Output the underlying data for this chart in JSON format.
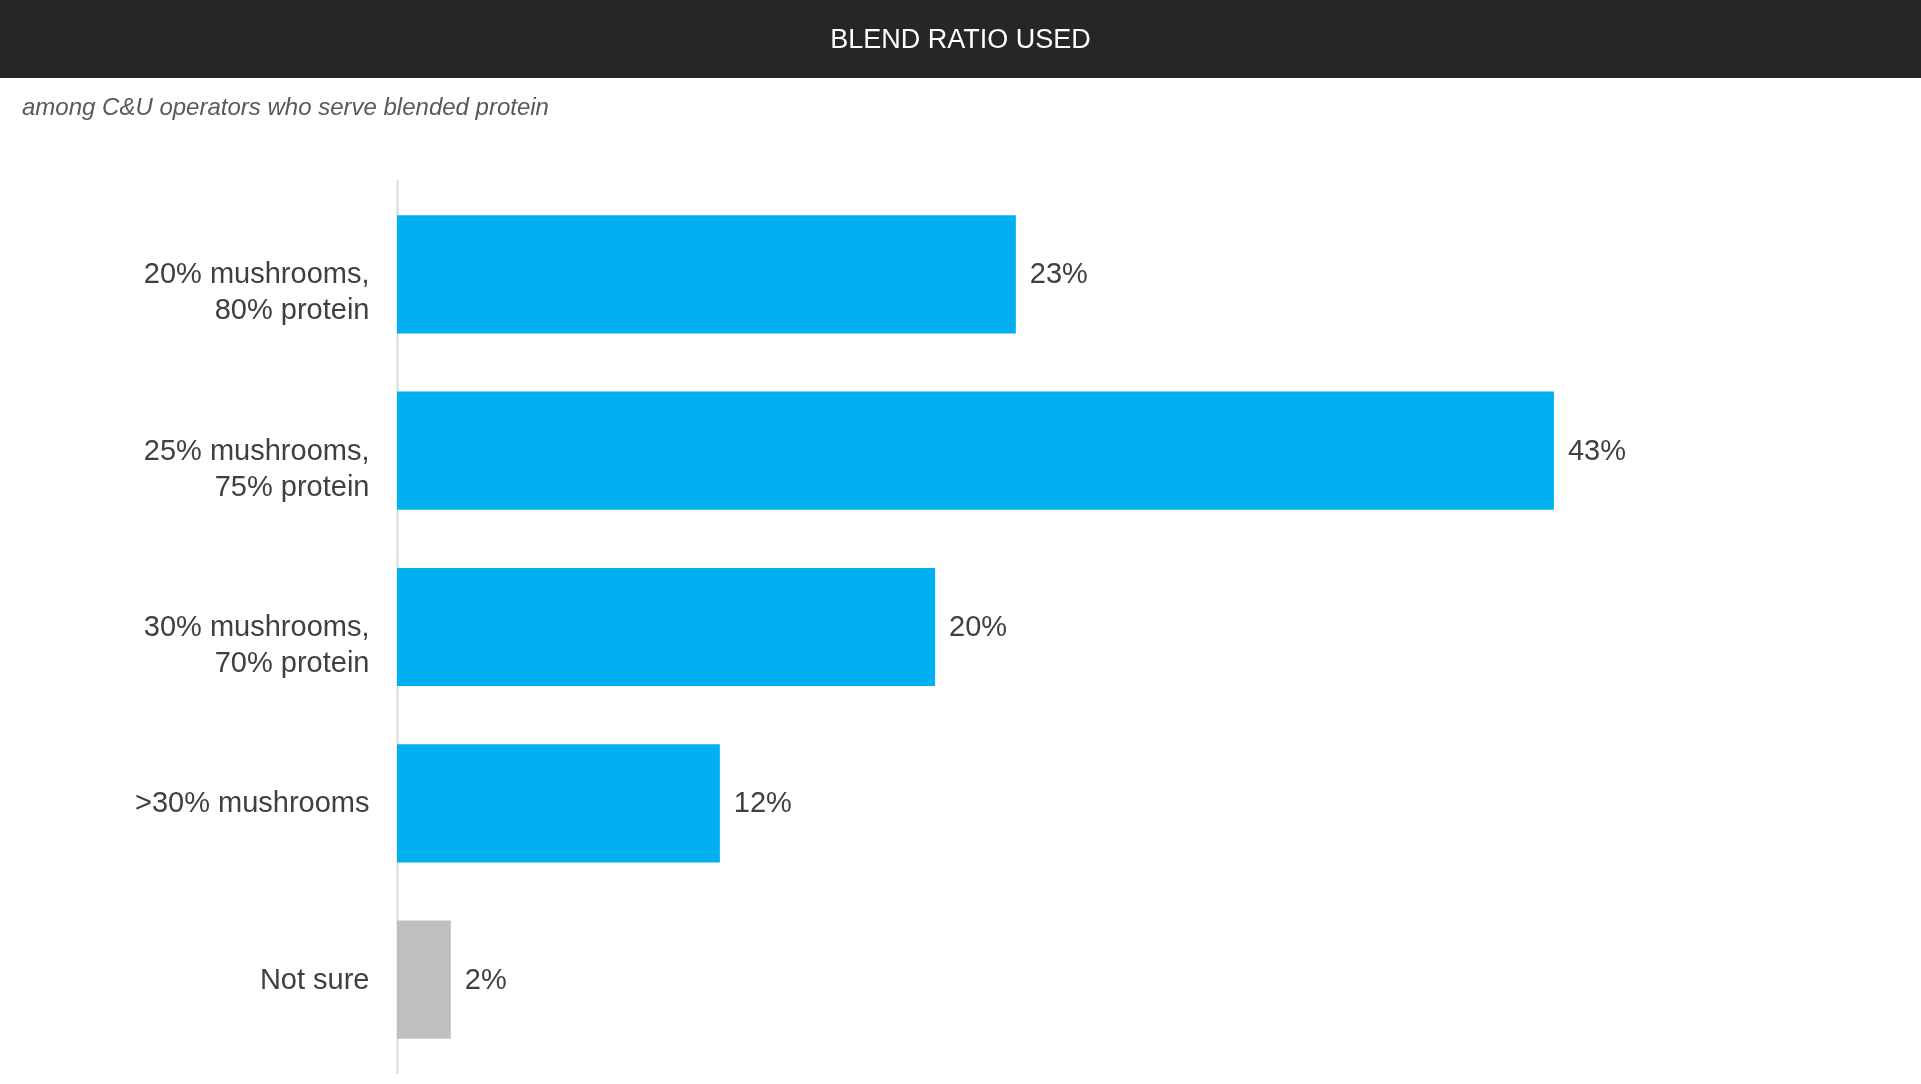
{
  "chart_data": {
    "type": "bar",
    "orientation": "horizontal",
    "title": "BLEND RATIO USED",
    "subtitle": "among C&U operators who serve blended protein",
    "categories": [
      "20% mushrooms, 80% protein",
      "25% mushrooms, 75% protein",
      "30% mushrooms, 70% protein",
      ">30% mushrooms",
      "Not sure"
    ],
    "values": [
      23,
      43,
      20,
      12,
      2
    ],
    "colors": [
      "#00b0f0",
      "#00b0f0",
      "#00b0f0",
      "#00b0f0",
      "#bfbfbf"
    ],
    "value_labels": [
      "23%",
      "43%",
      "20%",
      "12%",
      "2%"
    ]
  }
}
